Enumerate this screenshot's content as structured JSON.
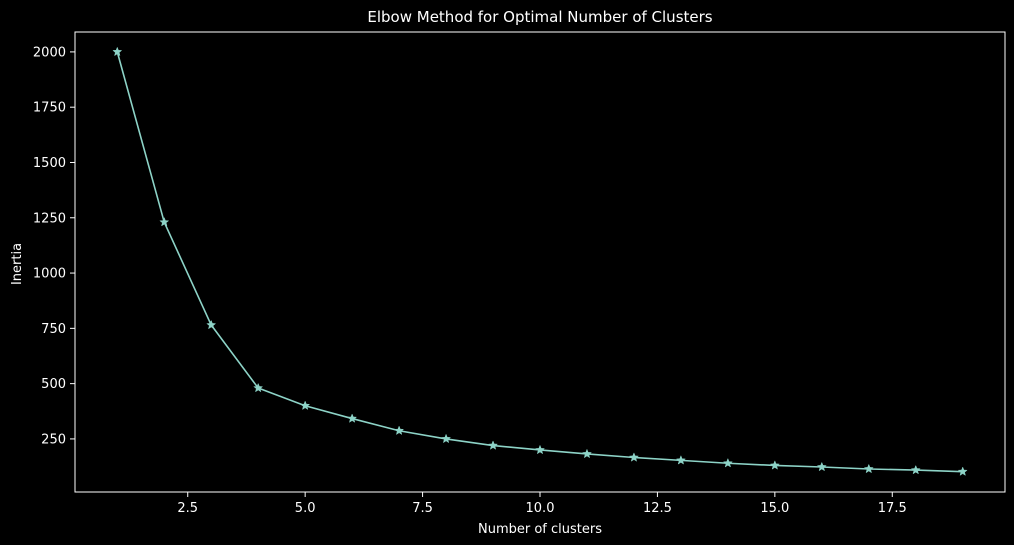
{
  "chart_data": {
    "type": "line",
    "title": "Elbow Method for Optimal Number of Clusters",
    "xlabel": "Number of clusters",
    "ylabel": "Inertia",
    "xlim": [
      0.1,
      19.9
    ],
    "ylim": [
      10,
      2090
    ],
    "x_ticks": [
      2.5,
      5.0,
      7.5,
      10.0,
      12.5,
      15.0,
      17.5
    ],
    "x_tick_labels": [
      "2.5",
      "5.0",
      "7.5",
      "10.0",
      "12.5",
      "15.0",
      "17.5"
    ],
    "y_ticks": [
      250,
      500,
      750,
      1000,
      1250,
      1500,
      1750,
      2000
    ],
    "y_tick_labels": [
      "250",
      "500",
      "750",
      "1000",
      "1250",
      "1500",
      "1750",
      "2000"
    ],
    "grid": false,
    "marker": "star",
    "colors": {
      "background": "#000000",
      "axes": "#ffffff",
      "line": "#8dd3c7",
      "text": "#ffffff"
    },
    "series": [
      {
        "x": [
          1,
          2,
          3,
          4,
          5,
          6,
          7,
          8,
          9,
          10,
          11,
          12,
          13,
          14,
          15,
          16,
          17,
          18,
          19
        ],
        "values": [
          2000,
          1230,
          765,
          480,
          400,
          342,
          287,
          250,
          220,
          200,
          182,
          166,
          153,
          140,
          130,
          123,
          114,
          109,
          102
        ]
      }
    ]
  }
}
